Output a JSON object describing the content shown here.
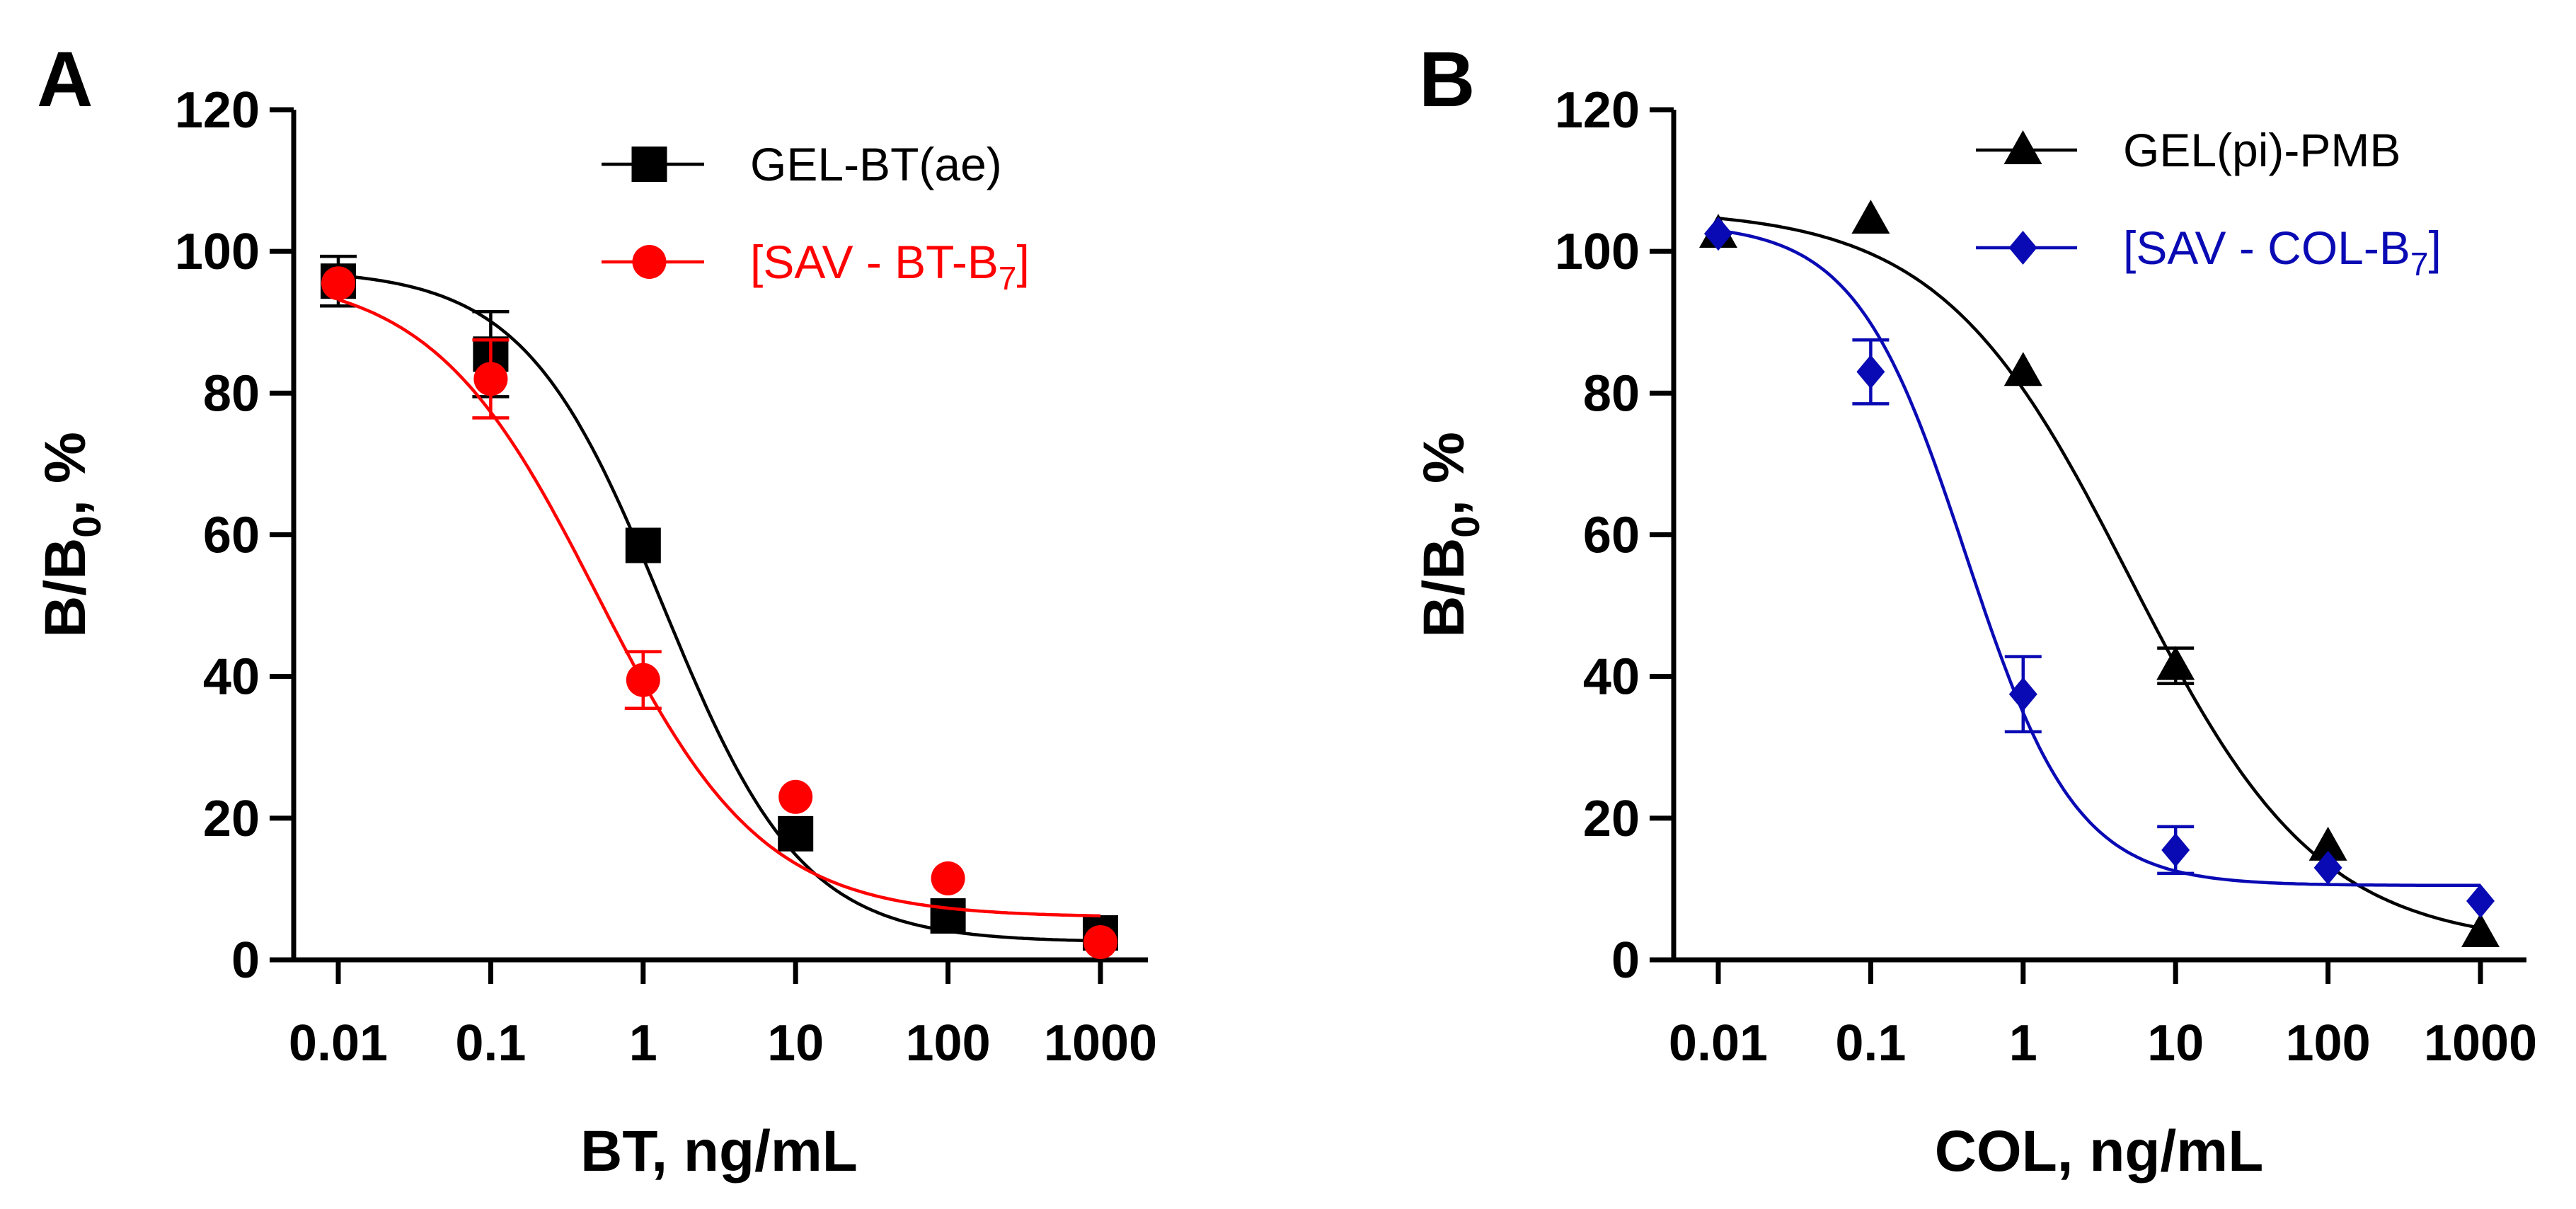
{
  "chart_data": [
    {
      "panel": "A",
      "type": "scatter",
      "x_scale": "log",
      "xlabel": "BT, ng/mL",
      "ylabel": {
        "main": "B/B",
        "sub": "0",
        "tail": ",  %"
      },
      "x_ticks": [
        "0.01",
        "0.1",
        "1",
        "10",
        "100",
        "1000"
      ],
      "y_ticks": [
        "0",
        "20",
        "40",
        "60",
        "80",
        "100",
        "120"
      ],
      "xlim": [
        0.01,
        1000
      ],
      "ylim": [
        0,
        120
      ],
      "legend_position": "top-right",
      "series": [
        {
          "legend": {
            "main": "GEL-BT(ae)",
            "sub": ""
          },
          "color": "#000000",
          "marker": "square",
          "x": [
            0.01,
            0.1,
            1,
            10,
            100,
            1000
          ],
          "y": [
            95.8,
            85.5,
            58.5,
            17.8,
            6.2,
            3.8
          ],
          "err": [
            3.5,
            6.0,
            0,
            0,
            0,
            0
          ],
          "fit": {
            "top": 97.5,
            "bottom": 2.5,
            "ec50": 1.35,
            "hill": 0.95
          }
        },
        {
          "legend": {
            "main": "[SAV - BT-B",
            "sub": "7",
            "tail": "]"
          },
          "color": "#ff0000",
          "marker": "circle",
          "x": [
            0.01,
            0.1,
            1,
            10,
            100,
            1000
          ],
          "y": [
            95.5,
            82.0,
            39.5,
            23.0,
            11.5,
            2.5
          ],
          "err": [
            0,
            5.5,
            4.0,
            0,
            0,
            0
          ],
          "fit": {
            "top": 97.0,
            "bottom": 6.0,
            "ec50": 0.5,
            "hill": 0.8
          }
        }
      ]
    },
    {
      "panel": "B",
      "type": "scatter",
      "x_scale": "log",
      "xlabel": "COL, ng/mL",
      "ylabel": {
        "main": "B/B",
        "sub": "0",
        "tail": ",  %"
      },
      "x_ticks": [
        "0.01",
        "0.1",
        "1",
        "10",
        "100",
        "1000"
      ],
      "y_ticks": [
        "0",
        "20",
        "40",
        "60",
        "80",
        "100",
        "120"
      ],
      "xlim": [
        0.01,
        1000
      ],
      "ylim": [
        0,
        120
      ],
      "legend_position": "top-right",
      "series": [
        {
          "legend": {
            "main": "GEL(pi)-PMB",
            "sub": ""
          },
          "color": "#000000",
          "marker": "triangle",
          "x": [
            0.01,
            0.1,
            1,
            10,
            100,
            1000
          ],
          "y": [
            102.5,
            104.5,
            83.0,
            41.5,
            16.0,
            3.8
          ],
          "err": [
            0,
            0,
            0,
            2.5,
            0,
            0
          ],
          "fit": {
            "top": 106.0,
            "bottom": 2.0,
            "ec50": 5.0,
            "hill": 0.7
          }
        },
        {
          "legend": {
            "main": "[SAV - COL-B",
            "sub": "7",
            "tail": "]"
          },
          "color": "#0a0ab4",
          "marker": "diamond",
          "x": [
            0.01,
            0.1,
            1,
            10,
            100,
            1000
          ],
          "y": [
            102.5,
            83.0,
            37.5,
            15.5,
            13.0,
            8.3
          ],
          "err": [
            0,
            4.5,
            5.3,
            3.3,
            0,
            0
          ],
          "fit": {
            "top": 104.0,
            "bottom": 10.5,
            "ec50": 0.42,
            "hill": 1.2
          }
        }
      ]
    }
  ]
}
